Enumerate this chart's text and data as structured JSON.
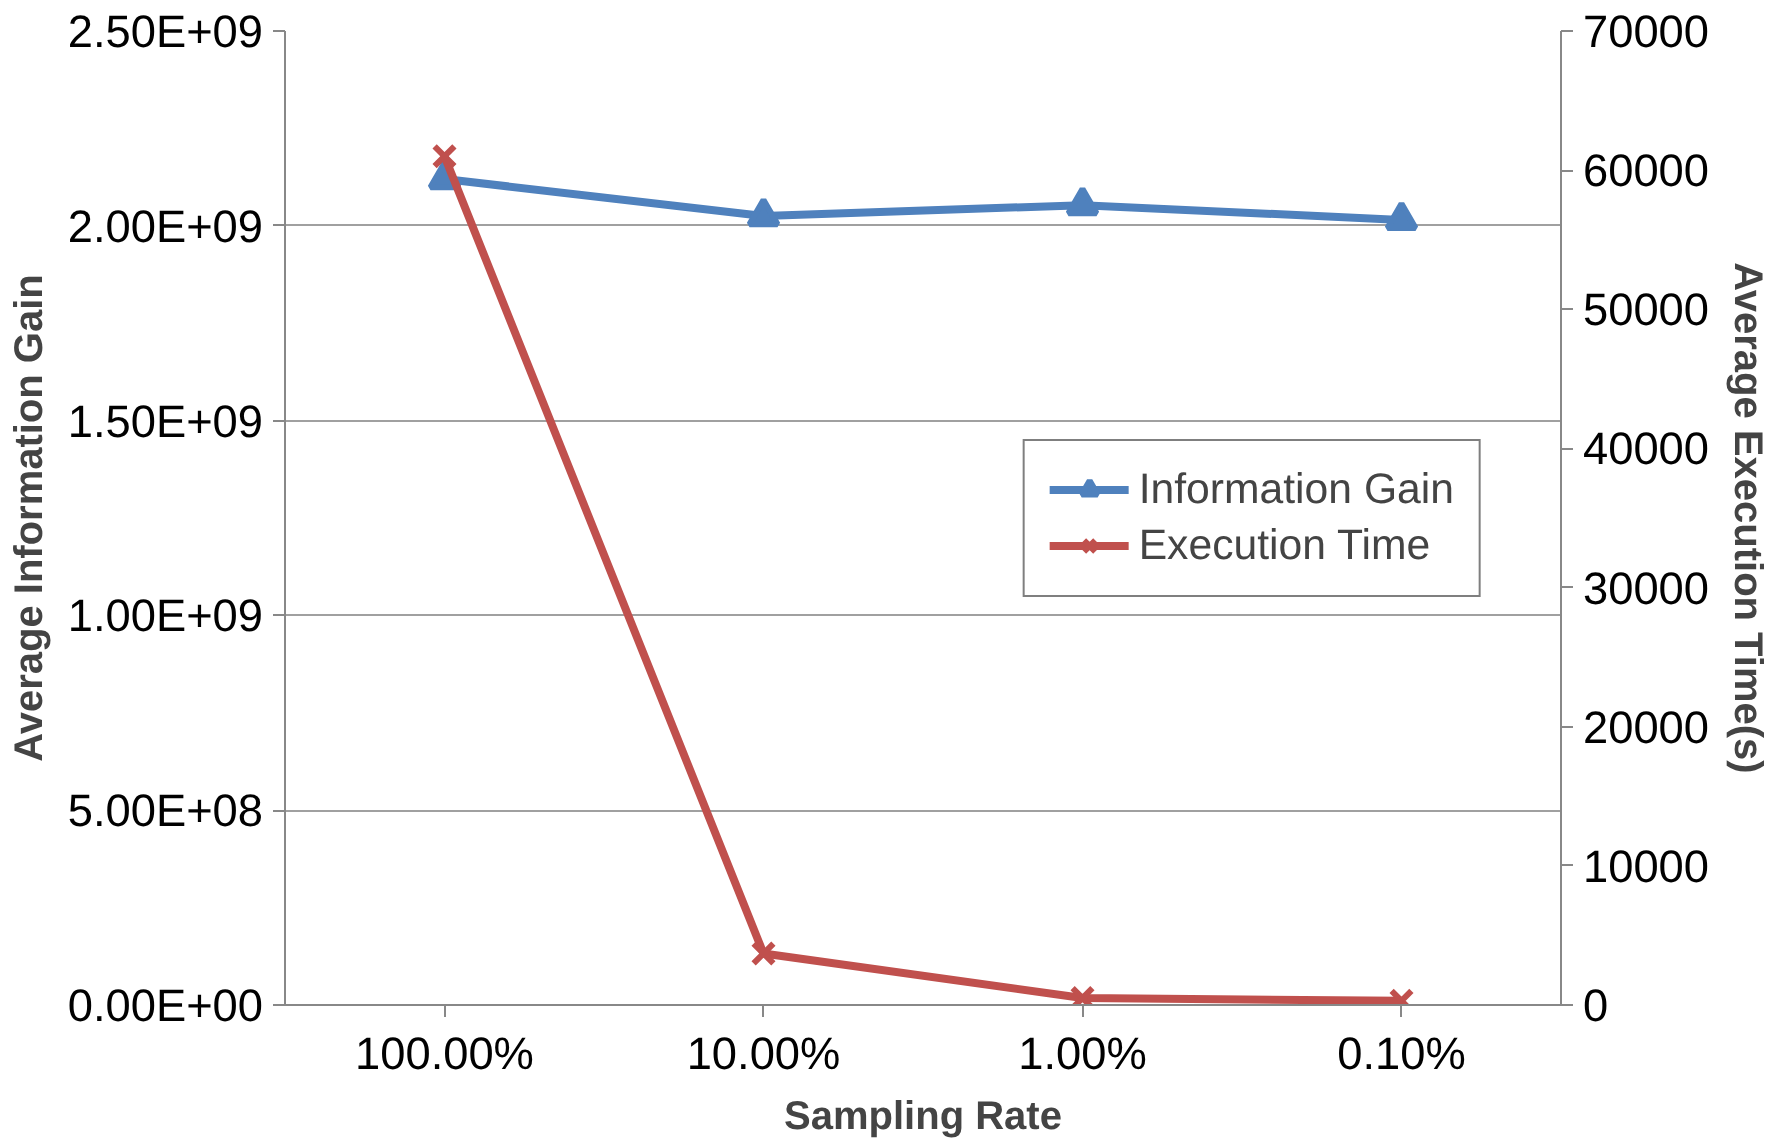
{
  "chart_data": {
    "type": "line",
    "xlabel": "Sampling Rate",
    "ylabel": "Average Information Gain",
    "y2label": "Average Execution Time(s)",
    "categories": [
      "100.00%",
      "10.00%",
      "1.00%",
      "0.10%"
    ],
    "series": [
      {
        "name": "Information Gain",
        "color": "#4f81bd",
        "values": [
          2120000000,
          2025000000,
          2053000000,
          2015000000
        ],
        "marker": "triangle"
      },
      {
        "name": "Execution Time",
        "color": "#c0504d",
        "values": [
          61000,
          3700,
          500,
          300
        ],
        "axis": "y2",
        "marker": "cross"
      }
    ],
    "ylim": [
      0,
      2500000000
    ],
    "yticks": [
      {
        "value": 0,
        "label": "0.00E+00"
      },
      {
        "value": 500000000,
        "label": "5.00E+08"
      },
      {
        "value": 1000000000,
        "label": "1.00E+09"
      },
      {
        "value": 1500000000,
        "label": "1.50E+09"
      },
      {
        "value": 2000000000,
        "label": "2.00E+09"
      },
      {
        "value": 2500000000,
        "label": "2.50E+09"
      }
    ],
    "y2lim": [
      0,
      70000
    ],
    "y2ticks": [
      0,
      10000,
      20000,
      30000,
      40000,
      50000,
      60000,
      70000
    ],
    "grid": "y",
    "legend": "right",
    "line_style": "solid"
  }
}
